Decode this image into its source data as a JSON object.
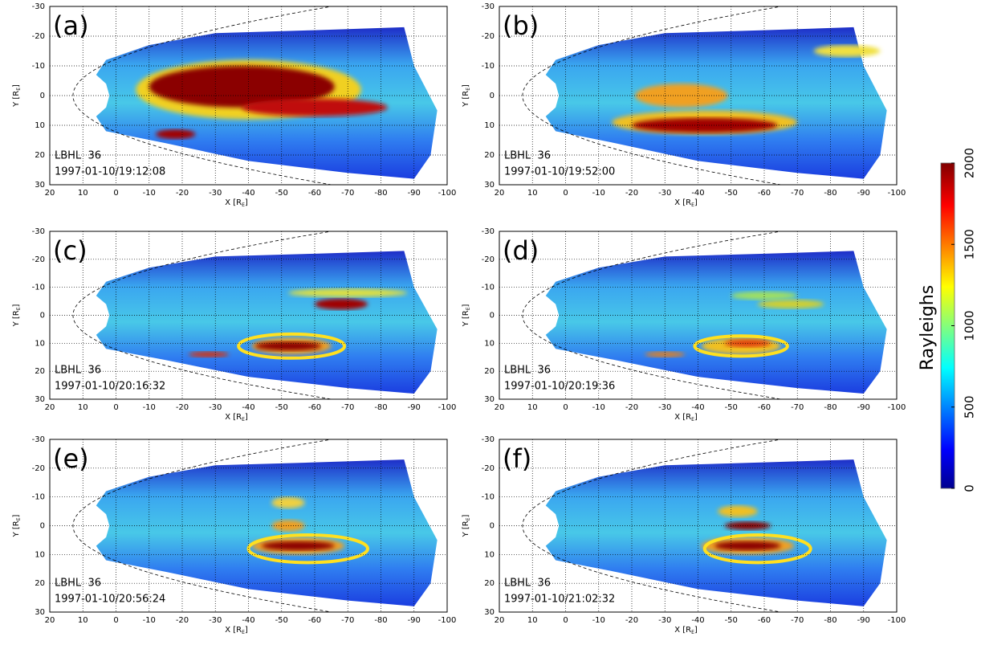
{
  "chart_data": [
    {
      "type": "image",
      "panel_label": "(a)",
      "instrument": "LBHL  36",
      "timestamp": "1997-01-10/19:12:08",
      "xlabel": [
        "X [R",
        "E",
        "]"
      ],
      "ylabel": [
        "Y [R",
        "E",
        "]"
      ],
      "xlim": [
        20,
        -100
      ],
      "ylim": [
        -30,
        30
      ],
      "xticks": [
        20,
        10,
        0,
        -10,
        -20,
        -30,
        -40,
        -50,
        -60,
        -70,
        -80,
        -90,
        -100
      ],
      "yticks": [
        -30,
        -20,
        -10,
        0,
        10,
        20,
        30
      ],
      "grid": true
    },
    {
      "type": "image",
      "panel_label": "(b)",
      "instrument": "LBHL  36",
      "timestamp": "1997-01-10/19:52:00",
      "xlabel": [
        "X [R",
        "E",
        "]"
      ],
      "ylabel": [
        "Y [R",
        "E",
        "]"
      ],
      "xlim": [
        20,
        -100
      ],
      "ylim": [
        -30,
        30
      ],
      "xticks": [
        20,
        10,
        0,
        -10,
        -20,
        -30,
        -40,
        -50,
        -60,
        -70,
        -80,
        -90,
        -100
      ],
      "yticks": [
        -30,
        -20,
        -10,
        0,
        10,
        20,
        30
      ],
      "grid": true
    },
    {
      "type": "image",
      "panel_label": "(c)",
      "instrument": "LBHL  36",
      "timestamp": "1997-01-10/20:16:32",
      "xlabel": [
        "X [R",
        "E",
        "]"
      ],
      "ylabel": [
        "Y [R",
        "E",
        "]"
      ],
      "xlim": [
        20,
        -100
      ],
      "ylim": [
        -30,
        30
      ],
      "xticks": [
        20,
        10,
        0,
        -10,
        -20,
        -30,
        -40,
        -50,
        -60,
        -70,
        -80,
        -90,
        -100
      ],
      "yticks": [
        -30,
        -20,
        -10,
        0,
        10,
        20,
        30
      ],
      "grid": true
    },
    {
      "type": "image",
      "panel_label": "(d)",
      "instrument": "LBHL  36",
      "timestamp": "1997-01-10/20:19:36",
      "xlabel": [
        "X [R",
        "E",
        "]"
      ],
      "ylabel": [
        "Y [R",
        "E",
        "]"
      ],
      "xlim": [
        20,
        -100
      ],
      "ylim": [
        -30,
        30
      ],
      "xticks": [
        20,
        10,
        0,
        -10,
        -20,
        -30,
        -40,
        -50,
        -60,
        -70,
        -80,
        -90,
        -100
      ],
      "yticks": [
        -30,
        -20,
        -10,
        0,
        10,
        20,
        30
      ],
      "grid": true
    },
    {
      "type": "image",
      "panel_label": "(e)",
      "instrument": "LBHL  36",
      "timestamp": "1997-01-10/20:56:24",
      "xlabel": [
        "X [R",
        "E",
        "]"
      ],
      "ylabel": [
        "Y [R",
        "E",
        "]"
      ],
      "xlim": [
        20,
        -100
      ],
      "ylim": [
        -30,
        30
      ],
      "xticks": [
        20,
        10,
        0,
        -10,
        -20,
        -30,
        -40,
        -50,
        -60,
        -70,
        -80,
        -90,
        -100
      ],
      "yticks": [
        -30,
        -20,
        -10,
        0,
        10,
        20,
        30
      ],
      "grid": true
    },
    {
      "type": "image",
      "panel_label": "(f)",
      "instrument": "LBHL  36",
      "timestamp": "1997-01-10/21:02:32",
      "xlabel": [
        "X [R",
        "E",
        "]"
      ],
      "ylabel": [
        "Y [R",
        "E",
        "]"
      ],
      "xlim": [
        20,
        -100
      ],
      "ylim": [
        -30,
        30
      ],
      "xticks": [
        20,
        10,
        0,
        -10,
        -20,
        -30,
        -40,
        -50,
        -60,
        -70,
        -80,
        -90,
        -100
      ],
      "yticks": [
        -30,
        -20,
        -10,
        0,
        10,
        20,
        30
      ],
      "grid": true
    },
    {
      "type": "colorbar",
      "label": "Rayleighs",
      "ylim": [
        0,
        2000
      ],
      "yticks": [
        0,
        500,
        1000,
        1500,
        2000
      ]
    }
  ]
}
